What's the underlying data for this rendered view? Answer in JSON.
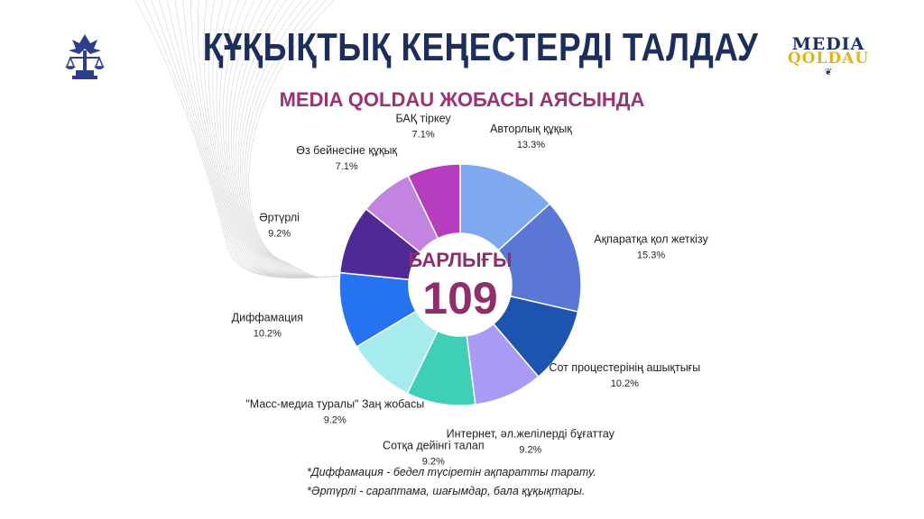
{
  "header": {
    "title": "ҚҰҚЫҚТЫҚ КЕҢЕСТЕРДІ ТАЛДАУ",
    "subtitle": "MEDIA QOLDAU ЖОБАСЫ АЯСЫНДА"
  },
  "logos": {
    "left_icon": "bird-scales-emblem-icon",
    "right_logo_line1": "MEDIA",
    "right_logo_line2": "QOLDAU"
  },
  "colors": {
    "title": "#1d2e5c",
    "subtitle": "#9b3373",
    "center_text": "#8e2f6b"
  },
  "chart_data": {
    "type": "pie",
    "variant": "donut",
    "center_label": "БАРЛЫҒЫ",
    "center_value": "109",
    "slices": [
      {
        "label": "Авторлық құқық",
        "value": 13.3,
        "display": "13.3%",
        "color": "#7fa9ef"
      },
      {
        "label": "Ақпаратқа қол жеткізу",
        "value": 15.3,
        "display": "15.3%",
        "color": "#5a77d6"
      },
      {
        "label": "Сот процестерінің ашықтығы",
        "value": 10.2,
        "display": "10.2%",
        "color": "#1c54b0"
      },
      {
        "label": "Интернет, әл.желілерді бұғаттау",
        "value": 9.2,
        "display": "9.2%",
        "color": "#a99af5"
      },
      {
        "label": "Сотқа дейінгі талап",
        "value": 9.2,
        "display": "9.2%",
        "color": "#3fcfb6"
      },
      {
        "label": "\"Масс-медиа туралы\" Заң жобасы",
        "value": 9.2,
        "display": "9.2%",
        "color": "#a6ecef"
      },
      {
        "label": "Диффамация",
        "value": 10.2,
        "display": "10.2%",
        "color": "#2673f2"
      },
      {
        "label": "Әртүрлі",
        "value": 9.2,
        "display": "9.2%",
        "color": "#4f2a95"
      },
      {
        "label": "Өз бейнесіне құқық",
        "value": 7.1,
        "display": "7.1%",
        "color": "#c284e0"
      },
      {
        "label": "БАҚ тіркеу",
        "value": 7.1,
        "display": "7.1%",
        "color": "#b63ebe"
      }
    ]
  },
  "footnotes": [
    "*Диффамация - бедел түсіретін ақпаратты тарату.",
    "*Әртүрлі - сараптама, шағымдар, бала құқықтары."
  ]
}
